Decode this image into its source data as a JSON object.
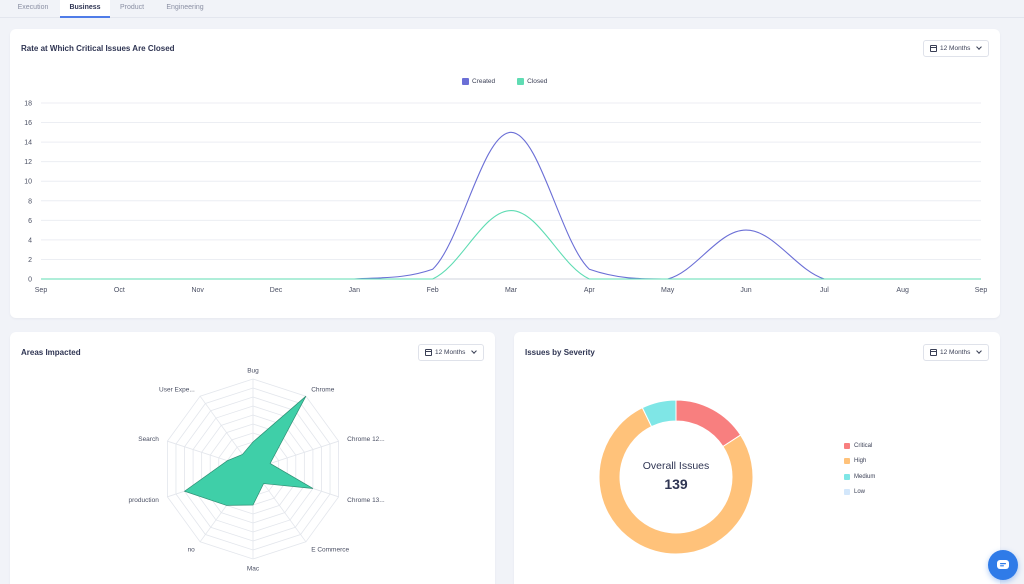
{
  "tabs": [
    {
      "label": "Execution"
    },
    {
      "label": "Business"
    },
    {
      "label": "Product"
    },
    {
      "label": "Engineering"
    }
  ],
  "active_tab": "Business",
  "period_label": "12 Months",
  "cards": {
    "rate": {
      "title": "Rate at Which Critical Issues Are Closed"
    },
    "areas": {
      "title": "Areas Impacted"
    },
    "severity": {
      "title": "Issues by Severity",
      "center_title": "Overall Issues",
      "center_value": "139"
    }
  },
  "colors": {
    "created": "#6b6fd6",
    "closed": "#5fdcb3",
    "radar_fill": "#3fcfa8",
    "critical": "#f87f7f",
    "high": "#ffc27a",
    "medium": "#7fe6e6",
    "low": "#d3e7fb",
    "accent": "#2f7be8"
  },
  "chart_data": [
    {
      "type": "line",
      "title": "Rate at Which Critical Issues Are Closed",
      "categories": [
        "Sep",
        "Oct",
        "Nov",
        "Dec",
        "Jan",
        "Feb",
        "Mar",
        "Apr",
        "May",
        "Jun",
        "Jul",
        "Aug",
        "Sep"
      ],
      "series": [
        {
          "name": "Created",
          "values": [
            0,
            0,
            0,
            0,
            0,
            1,
            15,
            1,
            0,
            5,
            0,
            0,
            0
          ]
        },
        {
          "name": "Closed",
          "values": [
            0,
            0,
            0,
            0,
            0,
            0,
            7,
            0,
            0,
            0,
            0,
            0,
            0
          ]
        }
      ],
      "ylim": [
        0,
        18
      ],
      "yticks": [
        0,
        2,
        4,
        6,
        8,
        10,
        12,
        14,
        16,
        18
      ],
      "grid": true,
      "legend": "top-center"
    },
    {
      "type": "radar",
      "title": "Areas Impacted",
      "categories": [
        "Bug",
        "Chrome",
        "Chrome 12...",
        "Chrome 13...",
        "E Commerce",
        "Mac",
        "no",
        "production",
        "Search",
        "User Expe..."
      ],
      "values": [
        3,
        10,
        2,
        7,
        2,
        4,
        5,
        8,
        3,
        2
      ],
      "max": 10
    },
    {
      "type": "pie",
      "title": "Issues by Severity",
      "total": 139,
      "categories": [
        "Critical",
        "High",
        "Medium",
        "Low"
      ],
      "values": [
        22,
        107,
        10,
        0
      ],
      "legend": "right"
    }
  ]
}
